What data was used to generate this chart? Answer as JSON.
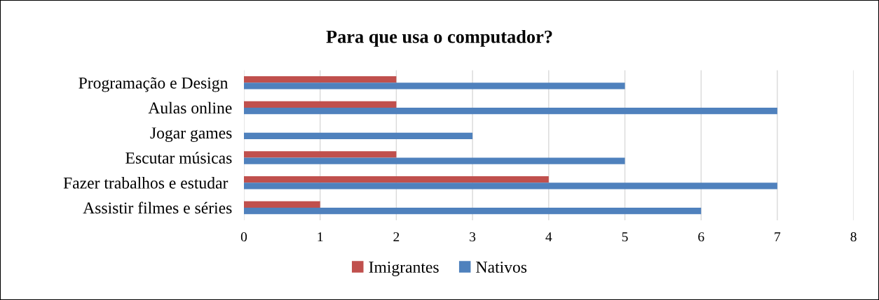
{
  "chart_data": {
    "type": "bar",
    "orientation": "horizontal",
    "title": "Para que usa o computador?",
    "categories": [
      "Programação e Design ",
      "Aulas online",
      "Jogar games",
      "Escutar músicas",
      "Fazer trabalhos e estudar ",
      "Assistir filmes e séries"
    ],
    "series": [
      {
        "name": "Imigrantes",
        "color": "#c0504d",
        "values": [
          2,
          2,
          0,
          2,
          4,
          1
        ]
      },
      {
        "name": "Nativos",
        "color": "#4f81bd",
        "values": [
          5,
          7,
          3,
          5,
          7,
          6
        ]
      }
    ],
    "xlim": [
      0,
      8
    ],
    "xticks": [
      0,
      1,
      2,
      3,
      4,
      5,
      6,
      7,
      8
    ],
    "grid": "x",
    "legend": "bottom"
  }
}
